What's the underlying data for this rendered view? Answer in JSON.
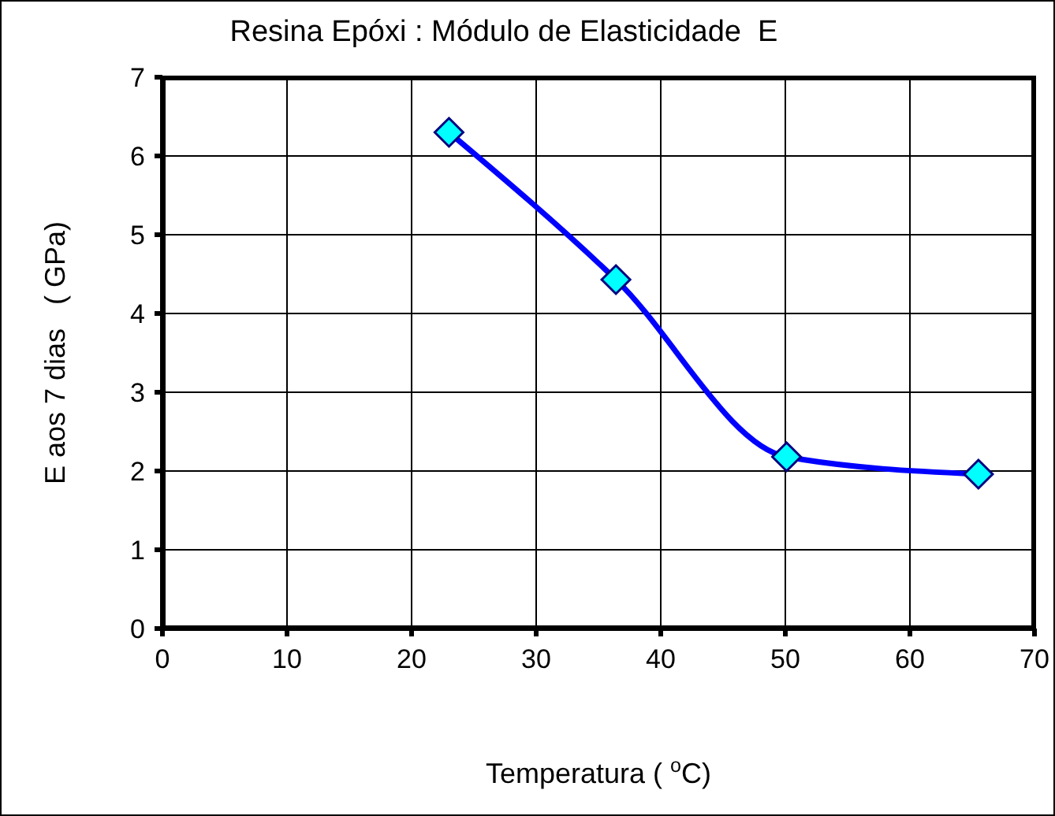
{
  "chart_data": {
    "type": "line",
    "title": "Resina Epóxi : Módulo de Elasticidade  E",
    "xlabel": "Temperatura ( $^{o}$C)",
    "ylabel": "E aos 7 dias   ( GPa)",
    "x": [
      23,
      36.4,
      50.1,
      65.5
    ],
    "series": [
      {
        "color": "#0000ff",
        "values": [
          6.3,
          4.43,
          2.18,
          1.96
        ]
      }
    ],
    "xlim": [
      0,
      70
    ],
    "xticks": [
      0,
      10,
      20,
      30,
      40,
      50,
      60,
      70
    ],
    "ylim": [
      0,
      7
    ],
    "yticks": [
      0,
      1,
      2,
      3,
      4,
      5,
      6,
      7
    ],
    "grid": true,
    "marker": "diamond",
    "line_style": "solid"
  }
}
